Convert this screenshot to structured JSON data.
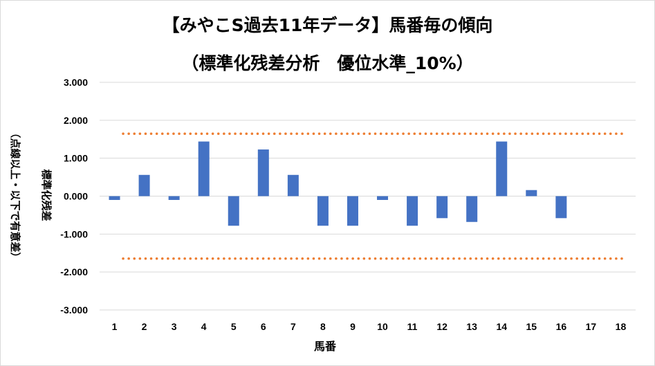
{
  "chart_data": {
    "type": "bar",
    "title": "【みやこS過去11年データ】馬番毎の傾向",
    "subtitle": "（標準化残差分析　優位水準_10%）",
    "xlabel": "馬番",
    "ylabel": "標準化残差",
    "ylabel2": "（点線以上・以下で有意差）",
    "categories": [
      "1",
      "2",
      "3",
      "4",
      "5",
      "6",
      "7",
      "8",
      "9",
      "10",
      "11",
      "12",
      "13",
      "14",
      "15",
      "16",
      "17",
      "18"
    ],
    "values": [
      -0.1,
      0.56,
      -0.1,
      1.44,
      -0.78,
      1.23,
      0.56,
      -0.78,
      -0.78,
      -0.1,
      -0.78,
      -0.58,
      -0.68,
      1.44,
      0.16,
      -0.58,
      null,
      null
    ],
    "ylim": [
      -3,
      3
    ],
    "yticks": [
      3,
      2,
      1,
      0,
      -1,
      -2,
      -3
    ],
    "ytick_labels": [
      "3.000",
      "2.000",
      "1.000",
      "0.000",
      "-1.000",
      "-2.000",
      "-3.000"
    ],
    "threshold_upper": 1.645,
    "threshold_lower": -1.645,
    "bar_color": "#4472c4",
    "threshold_color": "#ed7d31",
    "grid_color": "#d9d9d9"
  }
}
